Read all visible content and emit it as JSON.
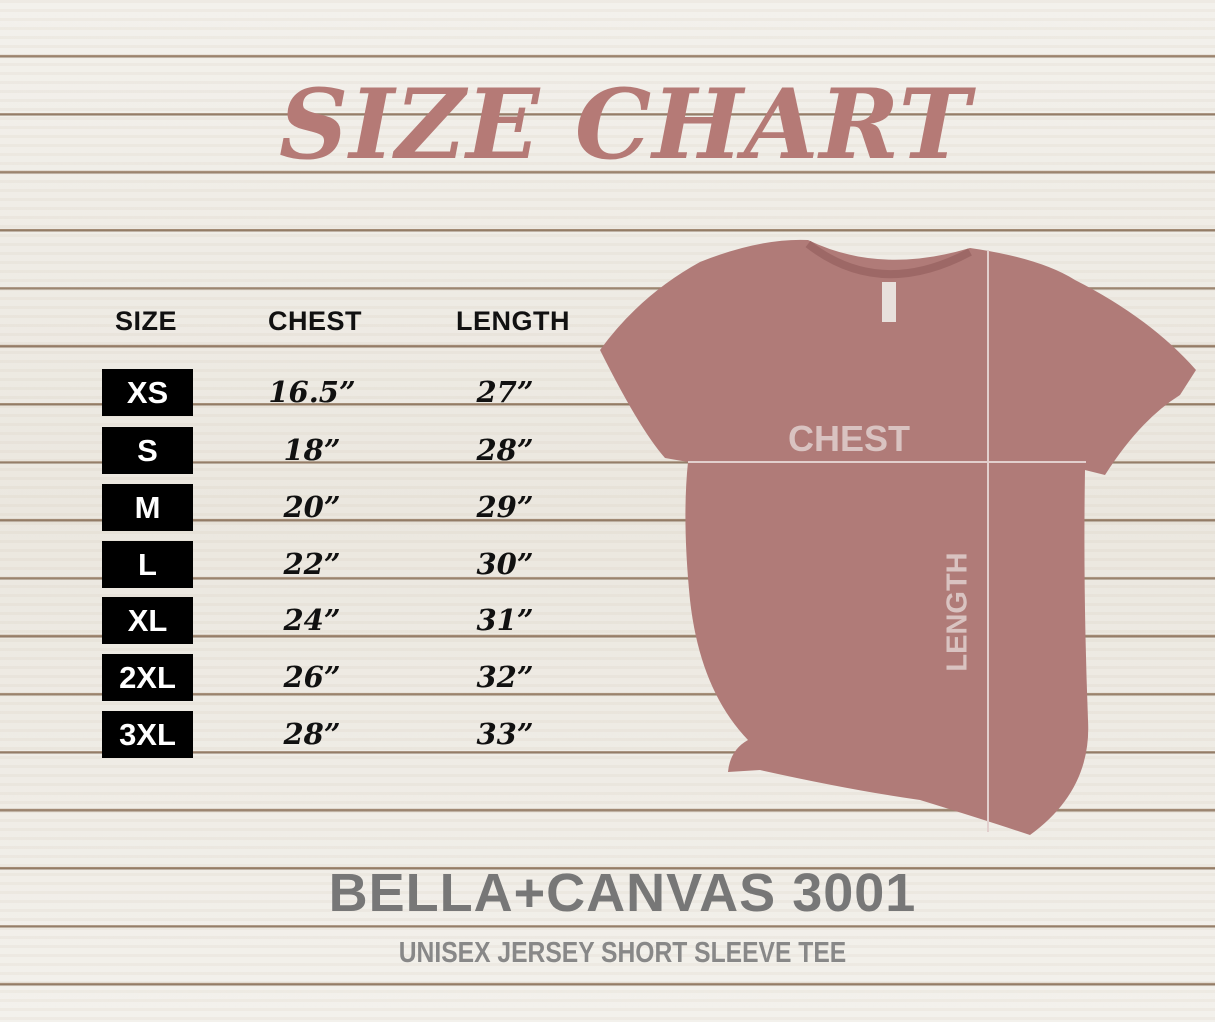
{
  "title": "SIZE CHART",
  "table": {
    "headers": [
      "SIZE",
      "CHEST",
      "LENGTH"
    ],
    "rows": [
      {
        "size": "XS",
        "chest": "16.5”",
        "length": "27”"
      },
      {
        "size": "S",
        "chest": "18”",
        "length": "28”"
      },
      {
        "size": "M",
        "chest": "20”",
        "length": "29”"
      },
      {
        "size": "L",
        "chest": "22”",
        "length": "30”"
      },
      {
        "size": "XL",
        "chest": "24”",
        "length": "31”"
      },
      {
        "size": "2XL",
        "chest": "26”",
        "length": "32”"
      },
      {
        "size": "3XL",
        "chest": "28”",
        "length": "33”"
      }
    ]
  },
  "diagram": {
    "chest_label": "CHEST",
    "length_label": "LENGTH",
    "shirt_color": "#b07b78"
  },
  "footer": {
    "brand": "BELLA+CANVAS 3001",
    "subtitle": "UNISEX JERSEY SHORT SLEEVE TEE"
  },
  "colors": {
    "title": "#b57a76",
    "size_box": "#000000",
    "brand_text": "#777777"
  }
}
